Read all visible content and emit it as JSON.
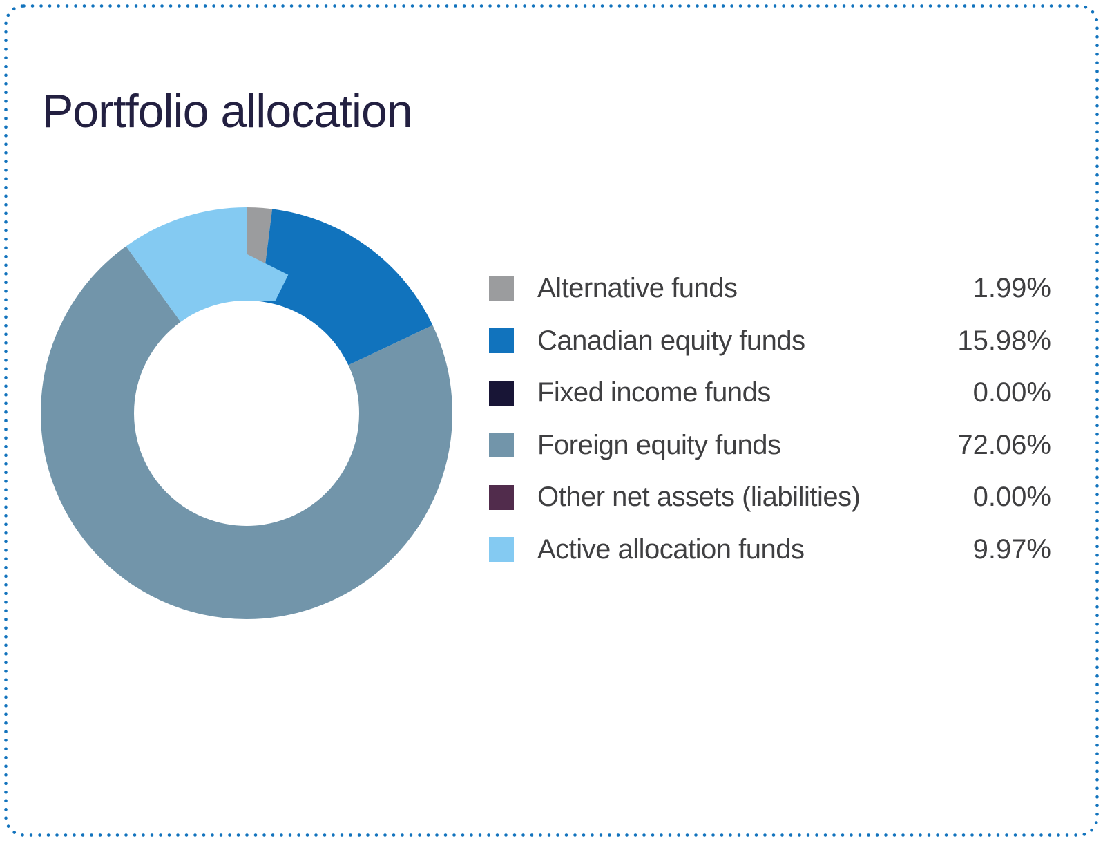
{
  "page": {
    "background": "#FFFFFF",
    "border_color": "#1273BD"
  },
  "card": {
    "title": "Portfolio allocation"
  },
  "chart_data": {
    "type": "pie",
    "subtype": "donut",
    "title": "Portfolio allocation",
    "inner_radius_ratio": 0.547,
    "start_angle_deg": 0,
    "direction": "clockwise",
    "legend_position": "right",
    "categories": [
      "Alternative funds",
      "Canadian equity funds",
      "Fixed income funds",
      "Foreign equity funds",
      "Other net assets (liabilities)",
      "Active allocation funds"
    ],
    "values": [
      1.99,
      15.98,
      0.0,
      72.06,
      0.0,
      9.97
    ],
    "value_labels": [
      "1.99%",
      "15.98%",
      "0.00%",
      "72.06%",
      "0.00%",
      "9.97%"
    ],
    "colors": [
      "#9B9C9E",
      "#1173BD",
      "#181536",
      "#7295AA",
      "#512C4C",
      "#84CAF2"
    ],
    "title_color": "#232041",
    "text_color": "#3F3F41"
  }
}
